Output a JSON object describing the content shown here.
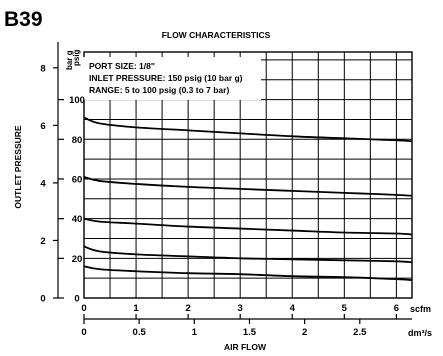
{
  "figure": {
    "model_code": "B39"
  },
  "chart_data": {
    "type": "line",
    "title": "FLOW CHARACTERISTICS",
    "xlabel": "AIR FLOW",
    "ylabel": "OUTLET PRESSURE",
    "x_units": {
      "primary": "scfm",
      "secondary": "dm³/s"
    },
    "y_units": {
      "primary": "psig",
      "secondary": "bar g"
    },
    "xlim": [
      0,
      6.3
    ],
    "ylim": [
      0,
      124
    ],
    "x_ticks_scfm": [
      "0",
      "1",
      "2",
      "3",
      "4",
      "5",
      "6"
    ],
    "x_ticks_dm3s": [
      "0",
      "0.5",
      "1",
      "1.5",
      "2",
      "2.5"
    ],
    "y_ticks_psig": [
      "0",
      "20",
      "40",
      "60",
      "80",
      "100"
    ],
    "y_ticks_bar": [
      "0",
      "2",
      "4",
      "6",
      "8"
    ],
    "grid": true,
    "annotations": [
      "PORT SIZE: 1/8\"",
      "INLET PRESSURE: 150 psig (10 bar g)",
      "RANGE: 5 to 100 psig (0.3 to 7 bar)"
    ],
    "series": [
      {
        "x": [
          0,
          0.3,
          1,
          2,
          3,
          4,
          5,
          6,
          6.3
        ],
        "values": [
          91,
          88,
          86,
          84.5,
          83,
          81.5,
          80.5,
          79.5,
          79
        ]
      },
      {
        "x": [
          0,
          0.3,
          1,
          2,
          3,
          4,
          5,
          6,
          6.3
        ],
        "values": [
          61,
          59,
          57.5,
          56,
          55,
          54,
          53,
          52,
          51.5
        ]
      },
      {
        "x": [
          0,
          0.3,
          1,
          2,
          3,
          4,
          5,
          6,
          6.3
        ],
        "values": [
          40,
          38.5,
          37.5,
          36,
          35,
          34,
          33,
          32.5,
          32
        ]
      },
      {
        "x": [
          0,
          0.3,
          1,
          2,
          3,
          4,
          5,
          6,
          6.3
        ],
        "values": [
          26,
          23.5,
          22,
          21,
          20,
          19.5,
          19,
          18.5,
          18
        ]
      },
      {
        "x": [
          0,
          0.3,
          1,
          2,
          3,
          4,
          5,
          6,
          6.3
        ],
        "values": [
          16,
          14.5,
          13.5,
          12.5,
          12,
          11,
          10.5,
          9.5,
          9
        ]
      }
    ]
  }
}
